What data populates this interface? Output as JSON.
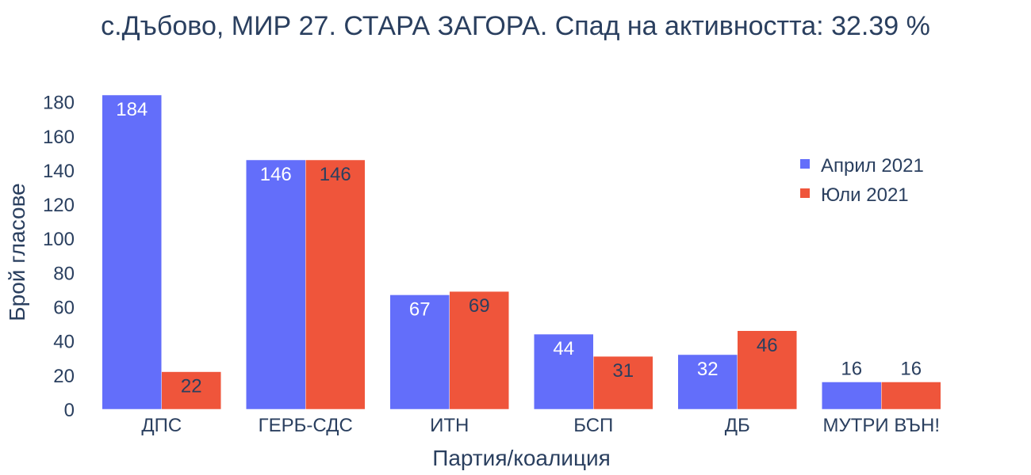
{
  "chart_data": {
    "type": "bar",
    "title": "с.Дъбово, МИР 27. СТАРА ЗАГОРА. Спад на активността: 32.39 %",
    "xlabel": "Партия/коалиция",
    "ylabel": "Брой гласове",
    "categories": [
      "ДПС",
      "ГЕРБ-СДС",
      "ИТН",
      "БСП",
      "ДБ",
      "МУТРИ ВЪН!"
    ],
    "series": [
      {
        "name": "Април 2021",
        "color": "#636efa",
        "values": [
          184,
          146,
          67,
          44,
          32,
          16
        ]
      },
      {
        "name": "Юли 2021",
        "color": "#ef553b",
        "values": [
          22,
          146,
          69,
          31,
          46,
          16
        ]
      }
    ],
    "ylim": [
      0,
      184
    ],
    "yticks": [
      0,
      20,
      40,
      60,
      80,
      100,
      120,
      140,
      160,
      180
    ],
    "grid": false,
    "legend_position": "top-right"
  }
}
